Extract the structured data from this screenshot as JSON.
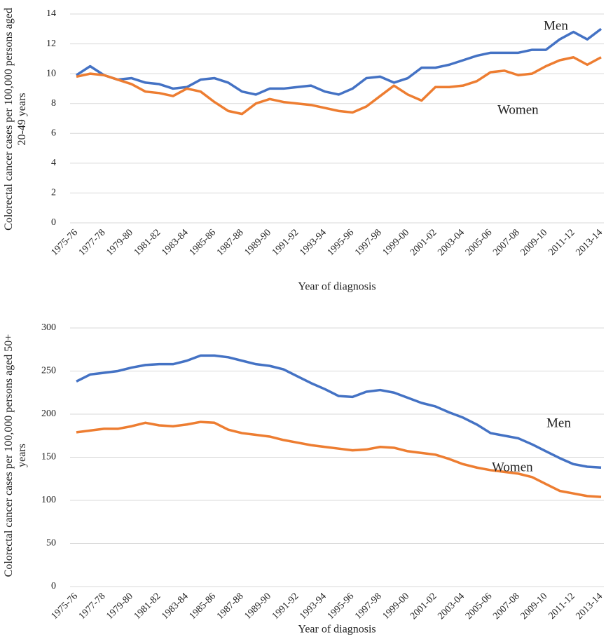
{
  "chart_data": [
    {
      "type": "line",
      "y_label": "Colorectal cancer cases per 100,000 persons aged 20-49 years",
      "x_label": "Year of diagnosis",
      "categories": [
        "1975-76",
        null,
        "1977-78",
        null,
        "1979-80",
        null,
        "1981-82",
        null,
        "1983-84",
        null,
        "1985-86",
        null,
        "1987-88",
        null,
        "1989-90",
        null,
        "1991-92",
        null,
        "1993-94",
        null,
        "1995-96",
        null,
        "1997-98",
        null,
        "1999-00",
        null,
        "2001-02",
        null,
        "2003-04",
        null,
        "2005-06",
        null,
        "2007-08",
        null,
        "2009-10",
        null,
        "2011-12",
        null,
        "2013-14"
      ],
      "series": [
        {
          "name": "Men",
          "color": "#4472c4",
          "values": [
            9.9,
            10.5,
            9.9,
            9.6,
            9.7,
            9.4,
            9.3,
            9.0,
            9.1,
            9.6,
            9.7,
            9.4,
            8.8,
            8.6,
            9.0,
            9.0,
            9.1,
            9.2,
            8.8,
            8.6,
            9.0,
            9.7,
            9.8,
            9.4,
            9.7,
            10.4,
            10.4,
            10.6,
            10.9,
            11.2,
            11.4,
            11.4,
            11.4,
            11.6,
            11.6,
            12.3,
            12.8,
            12.3,
            13.0
          ]
        },
        {
          "name": "Women",
          "color": "#ed7d31",
          "values": [
            9.8,
            10.0,
            9.9,
            9.6,
            9.3,
            8.8,
            8.7,
            8.5,
            9.0,
            8.8,
            8.1,
            7.5,
            7.3,
            8.0,
            8.3,
            8.1,
            8.0,
            7.9,
            7.7,
            7.5,
            7.4,
            7.8,
            8.5,
            9.2,
            8.6,
            8.2,
            9.1,
            9.1,
            9.2,
            9.5,
            10.1,
            10.2,
            9.9,
            10.0,
            10.5,
            10.9,
            11.1,
            10.6,
            11.1
          ]
        }
      ],
      "ylim": [
        0,
        14
      ],
      "yticks": [
        0,
        2,
        4,
        6,
        8,
        10,
        12,
        14
      ],
      "grid": true
    },
    {
      "type": "line",
      "y_label": "Colorectal cancer cases per 100,000 persons aged 50+ years",
      "x_label": "Year of diagnosis",
      "categories": [
        "1975-76",
        null,
        "1977-78",
        null,
        "1979-80",
        null,
        "1981-82",
        null,
        "1983-84",
        null,
        "1985-86",
        null,
        "1987-88",
        null,
        "1989-90",
        null,
        "1991-92",
        null,
        "1993-94",
        null,
        "1995-96",
        null,
        "1997-98",
        null,
        "1999-00",
        null,
        "2001-02",
        null,
        "2003-04",
        null,
        "2005-06",
        null,
        "2007-08",
        null,
        "2009-10",
        null,
        "2011-12",
        null,
        "2013-14"
      ],
      "series": [
        {
          "name": "Men",
          "color": "#4472c4",
          "values": [
            238,
            246,
            248,
            250,
            254,
            257,
            258,
            258,
            262,
            268,
            268,
            266,
            262,
            258,
            256,
            252,
            244,
            236,
            229,
            221,
            220,
            226,
            228,
            225,
            219,
            213,
            209,
            202,
            196,
            188,
            178,
            175,
            172,
            165,
            157,
            149,
            142,
            139,
            138
          ]
        },
        {
          "name": "Women",
          "color": "#ed7d31",
          "values": [
            179,
            181,
            183,
            183,
            186,
            190,
            187,
            186,
            188,
            191,
            190,
            182,
            178,
            176,
            174,
            170,
            167,
            164,
            162,
            160,
            158,
            159,
            162,
            161,
            157,
            155,
            153,
            148,
            142,
            138,
            135,
            133,
            131,
            127,
            119,
            111,
            108,
            105,
            104
          ]
        }
      ],
      "ylim": [
        0,
        300
      ],
      "yticks": [
        0,
        50,
        100,
        150,
        200,
        250,
        300
      ],
      "grid": true
    }
  ]
}
